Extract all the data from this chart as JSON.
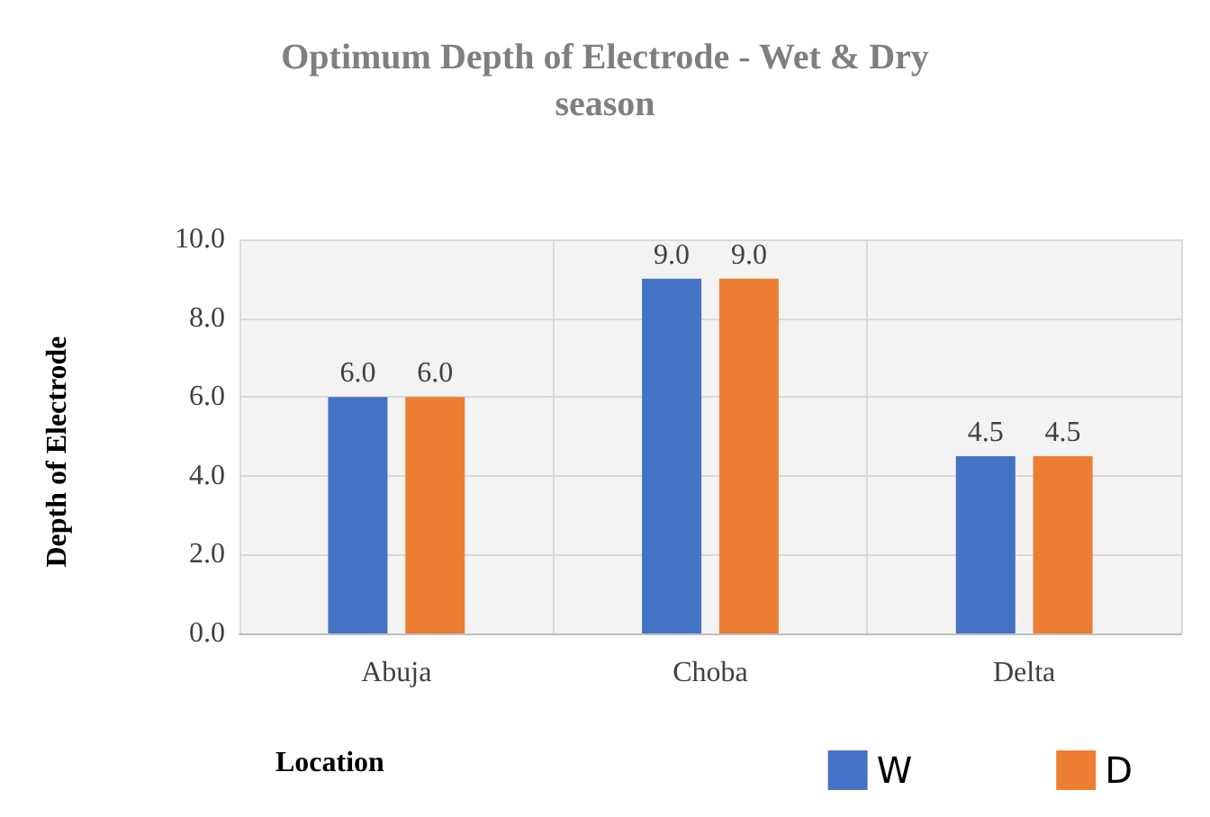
{
  "chart_data": {
    "type": "bar",
    "title": "Optimum Depth of Electrode - Wet & Dry\nseason",
    "xlabel": "Location",
    "ylabel": "Depth of Electrode",
    "categories": [
      "Abuja",
      "Choba",
      "Delta"
    ],
    "series": [
      {
        "name": "W",
        "color": "#4472c4",
        "values": [
          6.0,
          9.0,
          4.5
        ],
        "value_labels": [
          "6.0",
          "9.0",
          "4.5"
        ]
      },
      {
        "name": "D",
        "color": "#ed7d31",
        "values": [
          6.0,
          9.0,
          4.5
        ],
        "value_labels": [
          "6.0",
          "9.0",
          "4.5"
        ]
      }
    ],
    "ylim": [
      0,
      10
    ],
    "yticks": [
      {
        "value": 0,
        "label": "0.0"
      },
      {
        "value": 2,
        "label": "2.0"
      },
      {
        "value": 4,
        "label": "4.0"
      },
      {
        "value": 6,
        "label": "6.0"
      },
      {
        "value": 8,
        "label": "8.0"
      },
      {
        "value": 10,
        "label": "10.0"
      }
    ],
    "grid": true,
    "legend": "bottom right"
  }
}
